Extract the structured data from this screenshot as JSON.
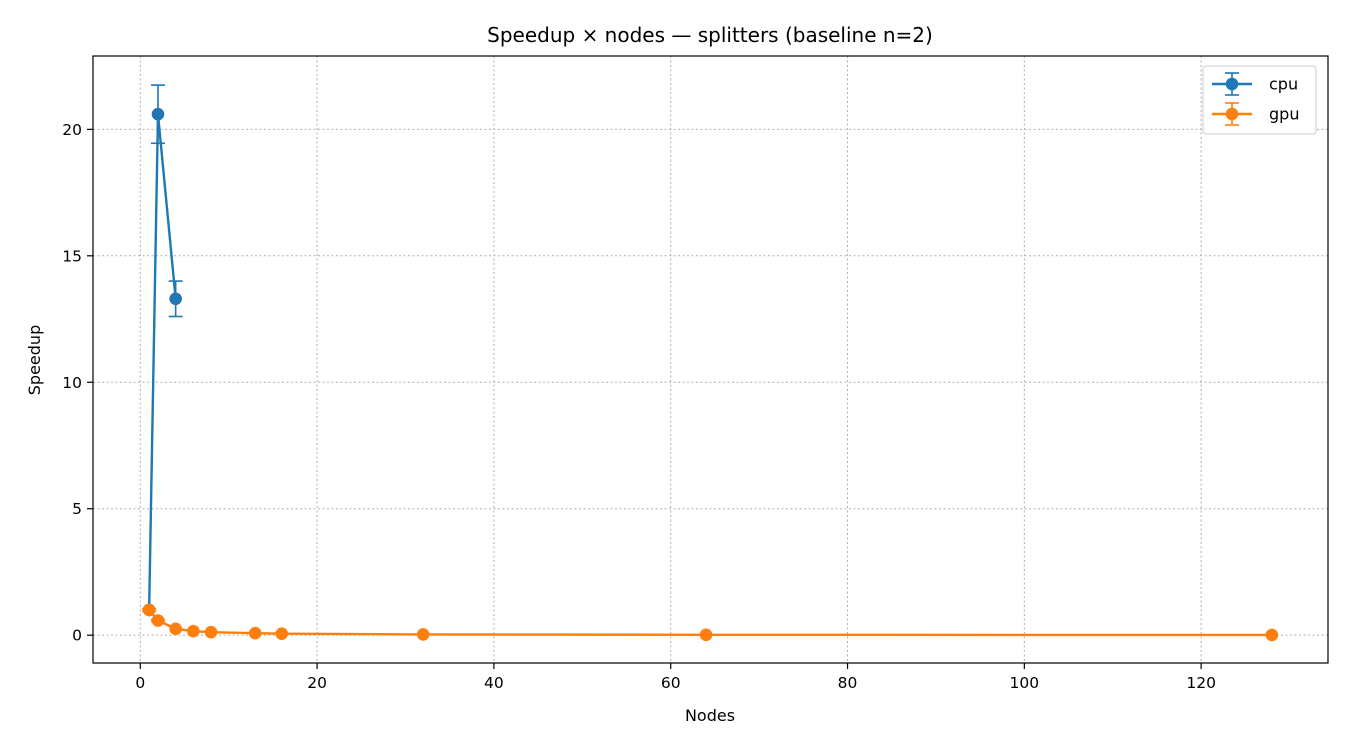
{
  "chart_data": {
    "type": "line",
    "title": "Speedup × nodes — splitters (baseline n=2)",
    "xlabel": "Nodes",
    "ylabel": "Speedup",
    "xlim": [
      -5.35,
      134.35
    ],
    "ylim": [
      -1.1,
      22.9
    ],
    "xticks": [
      0,
      20,
      40,
      60,
      80,
      100,
      120
    ],
    "yticks": [
      0,
      5,
      10,
      15,
      20
    ],
    "grid": true,
    "legend_position": "top-right",
    "series": [
      {
        "name": "cpu",
        "color": "#1f77b4",
        "x": [
          1,
          2,
          4
        ],
        "y": [
          1.0,
          20.6,
          13.3
        ],
        "yerr": [
          0.0,
          1.15,
          0.7
        ]
      },
      {
        "name": "gpu",
        "color": "#ff7f0e",
        "x": [
          1,
          2,
          4,
          6,
          8,
          13,
          16,
          32,
          64,
          128
        ],
        "y": [
          1.0,
          0.58,
          0.25,
          0.16,
          0.12,
          0.08,
          0.06,
          0.03,
          0.015,
          0.008
        ],
        "yerr": [
          0.05,
          0.04,
          0.02,
          0.01,
          0.01,
          0.005,
          0.005,
          0.003,
          0.002,
          0.001
        ]
      }
    ]
  }
}
